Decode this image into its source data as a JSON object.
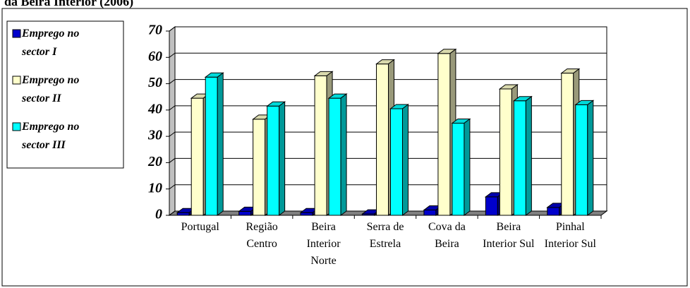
{
  "chart_data": {
    "type": "bar3d",
    "title": "da Beira Interior (2006)",
    "categories": [
      "Portugal",
      "Região Centro",
      "Beira Interior Norte",
      "Serra de Estrela",
      "Cova da Beira",
      "Beira Interior Sul",
      "Pinhal Interior Sul"
    ],
    "series": [
      {
        "name": "Emprego no sector I",
        "color": "#0000cc",
        "values": [
          1,
          1.5,
          1,
          0.5,
          2,
          7,
          3
        ]
      },
      {
        "name": "Emprego no sector II",
        "color": "#ffffcc",
        "values": [
          44.5,
          36.5,
          53,
          57.5,
          61.5,
          48,
          54
        ]
      },
      {
        "name": "Emprego no sector III",
        "color": "#00ffff",
        "values": [
          52.5,
          41.5,
          44.5,
          40.5,
          35,
          43.5,
          42
        ]
      }
    ],
    "ylim": [
      0,
      70
    ],
    "yticks": [
      0,
      10,
      20,
      30,
      40,
      50,
      60,
      70
    ],
    "grid": true,
    "legend": "left"
  }
}
